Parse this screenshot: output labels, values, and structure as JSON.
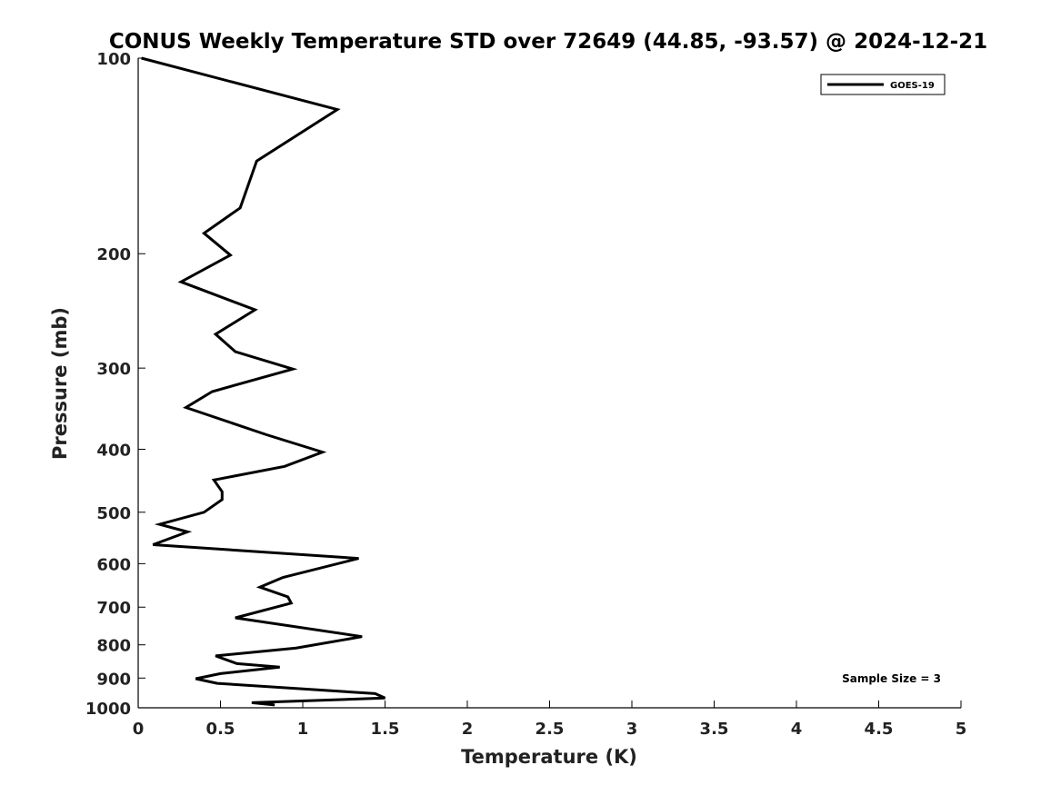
{
  "chart_data": {
    "type": "line",
    "title": "CONUS Weekly Temperature STD over 72649 (44.85, -93.57) @ 2024-12-21",
    "xlabel": "Temperature (K)",
    "ylabel": "Pressure (mb)",
    "xlim": [
      0,
      5
    ],
    "ylim": [
      1000,
      100
    ],
    "y_scale": "log",
    "y_inverted": true,
    "grid": false,
    "legend_position": "top-right",
    "x_ticks": [
      0,
      0.5,
      1,
      1.5,
      2,
      2.5,
      3,
      3.5,
      4,
      4.5,
      5
    ],
    "x_tick_labels": [
      "0",
      "0.5",
      "1",
      "1.5",
      "2",
      "2.5",
      "3",
      "3.5",
      "4",
      "4.5",
      "5"
    ],
    "y_ticks": [
      100,
      200,
      300,
      400,
      500,
      600,
      700,
      800,
      900,
      1000
    ],
    "y_tick_labels": [
      "100",
      "200",
      "300",
      "400",
      "500",
      "600",
      "700",
      "800",
      "900",
      "1000"
    ],
    "series": [
      {
        "name": "GOES-19",
        "color": "#000000",
        "points": [
          [
            0.02,
            100
          ],
          [
            1.21,
            120
          ],
          [
            0.72,
            144
          ],
          [
            0.62,
            170
          ],
          [
            0.4,
            186
          ],
          [
            0.56,
            201
          ],
          [
            0.26,
            221
          ],
          [
            0.71,
            244
          ],
          [
            0.47,
            266
          ],
          [
            0.59,
            283
          ],
          [
            0.94,
            301
          ],
          [
            0.45,
            326
          ],
          [
            0.29,
            345
          ],
          [
            0.78,
            380
          ],
          [
            1.12,
            404
          ],
          [
            0.89,
            425
          ],
          [
            0.46,
            446
          ],
          [
            0.51,
            465
          ],
          [
            0.51,
            478
          ],
          [
            0.4,
            500
          ],
          [
            0.13,
            522
          ],
          [
            0.3,
            536
          ],
          [
            0.09,
            561
          ],
          [
            1.34,
            589
          ],
          [
            0.88,
            630
          ],
          [
            0.74,
            652
          ],
          [
            0.91,
            675
          ],
          [
            0.93,
            690
          ],
          [
            0.59,
            727
          ],
          [
            1.36,
            777
          ],
          [
            0.96,
            809
          ],
          [
            0.47,
            832
          ],
          [
            0.6,
            855
          ],
          [
            0.86,
            866
          ],
          [
            0.5,
            886
          ],
          [
            0.35,
            902
          ],
          [
            0.48,
            917
          ],
          [
            1.44,
            951
          ],
          [
            1.5,
            966
          ],
          [
            0.69,
            982
          ],
          [
            0.83,
            990
          ]
        ]
      }
    ],
    "annotations": [
      "Sample Size = 3"
    ]
  }
}
